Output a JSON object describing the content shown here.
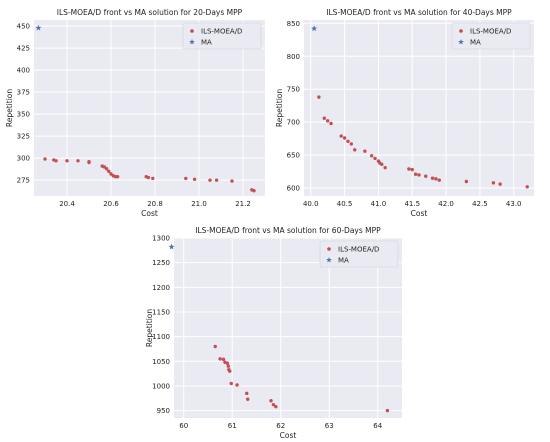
{
  "chart_data": [
    {
      "type": "scatter",
      "title": "ILS-MOEA/D front vs MA solution for 20-Days MPP",
      "xlabel": "Cost",
      "ylabel": "Repetition",
      "xlim": [
        20.25,
        21.3
      ],
      "ylim": [
        257,
        457
      ],
      "xticks": [
        "20.4",
        "20.6",
        "20.8",
        "21.0",
        "21.2"
      ],
      "yticks": [
        "275",
        "300",
        "325",
        "350",
        "375",
        "400",
        "425",
        "450"
      ],
      "grid": true,
      "legend_position": "top-right",
      "series": [
        {
          "name": "ILS-MOEA/D",
          "marker": "circle",
          "color": "#c44e52",
          "points": [
            [
              20.3,
              299
            ],
            [
              20.34,
              298
            ],
            [
              20.35,
              297
            ],
            [
              20.4,
              297
            ],
            [
              20.45,
              297
            ],
            [
              20.5,
              296
            ],
            [
              20.5,
              295
            ],
            [
              20.56,
              291
            ],
            [
              20.57,
              290
            ],
            [
              20.58,
              288
            ],
            [
              20.59,
              285
            ],
            [
              20.6,
              282
            ],
            [
              20.61,
              280
            ],
            [
              20.62,
              279
            ],
            [
              20.63,
              279
            ],
            [
              20.76,
              279
            ],
            [
              20.77,
              278
            ],
            [
              20.79,
              277
            ],
            [
              20.94,
              277
            ],
            [
              20.98,
              276
            ],
            [
              21.05,
              275
            ],
            [
              21.08,
              275
            ],
            [
              21.15,
              274
            ],
            [
              21.24,
              264
            ],
            [
              21.25,
              263
            ]
          ]
        },
        {
          "name": "MA",
          "marker": "star",
          "color": "#4c72b0",
          "points": [
            [
              20.27,
              448
            ]
          ]
        }
      ]
    },
    {
      "type": "scatter",
      "title": "ILS-MOEA/D front vs MA solution for 40-Days MPP",
      "xlabel": "Cost",
      "ylabel": "Repetition",
      "xlim": [
        39.9,
        43.3
      ],
      "ylim": [
        588,
        855
      ],
      "xticks": [
        "40.0",
        "40.5",
        "41.0",
        "41.5",
        "42.0",
        "42.5",
        "43.0"
      ],
      "yticks": [
        "600",
        "650",
        "700",
        "750",
        "800",
        "850"
      ],
      "grid": true,
      "legend_position": "top-right",
      "series": [
        {
          "name": "ILS-MOEA/D",
          "marker": "circle",
          "color": "#c44e52",
          "points": [
            [
              40.12,
              738
            ],
            [
              40.2,
              706
            ],
            [
              40.25,
              702
            ],
            [
              40.3,
              698
            ],
            [
              40.45,
              679
            ],
            [
              40.5,
              676
            ],
            [
              40.55,
              671
            ],
            [
              40.6,
              667
            ],
            [
              40.65,
              658
            ],
            [
              40.8,
              656
            ],
            [
              40.9,
              649
            ],
            [
              40.95,
              645
            ],
            [
              41.0,
              641
            ],
            [
              41.02,
              638
            ],
            [
              41.05,
              636
            ],
            [
              41.1,
              631
            ],
            [
              41.45,
              629
            ],
            [
              41.5,
              628
            ],
            [
              41.55,
              621
            ],
            [
              41.6,
              620
            ],
            [
              41.7,
              618
            ],
            [
              41.8,
              615
            ],
            [
              41.85,
              614
            ],
            [
              41.9,
              612
            ],
            [
              42.3,
              610
            ],
            [
              42.7,
              608
            ],
            [
              42.8,
              606
            ],
            [
              43.2,
              602
            ]
          ]
        },
        {
          "name": "MA",
          "marker": "star",
          "color": "#4c72b0",
          "points": [
            [
              40.05,
              842
            ]
          ]
        }
      ]
    },
    {
      "type": "scatter",
      "title": "ILS-MOEA/D front vs MA solution for 60-Days MPP",
      "xlabel": "Cost",
      "ylabel": "Repetition",
      "xlim": [
        59.8,
        64.5
      ],
      "ylim": [
        935,
        1300
      ],
      "xticks": [
        "60",
        "61",
        "62",
        "63",
        "64"
      ],
      "yticks": [
        "950",
        "1000",
        "1050",
        "1100",
        "1150",
        "1200",
        "1250",
        "1300"
      ],
      "grid": true,
      "legend_position": "top-right",
      "series": [
        {
          "name": "ILS-MOEA/D",
          "marker": "circle",
          "color": "#c44e52",
          "points": [
            [
              60.65,
              1080
            ],
            [
              60.75,
              1055
            ],
            [
              60.82,
              1054
            ],
            [
              60.85,
              1048
            ],
            [
              60.9,
              1046
            ],
            [
              60.92,
              1040
            ],
            [
              60.93,
              1033
            ],
            [
              60.95,
              1030
            ],
            [
              60.98,
              1005
            ],
            [
              61.1,
              1002
            ],
            [
              61.3,
              985
            ],
            [
              61.32,
              973
            ],
            [
              61.8,
              970
            ],
            [
              61.85,
              962
            ],
            [
              61.9,
              958
            ],
            [
              64.2,
              950
            ]
          ]
        },
        {
          "name": "MA",
          "marker": "star",
          "color": "#4c72b0",
          "points": [
            [
              59.75,
              1282
            ]
          ]
        }
      ]
    }
  ]
}
